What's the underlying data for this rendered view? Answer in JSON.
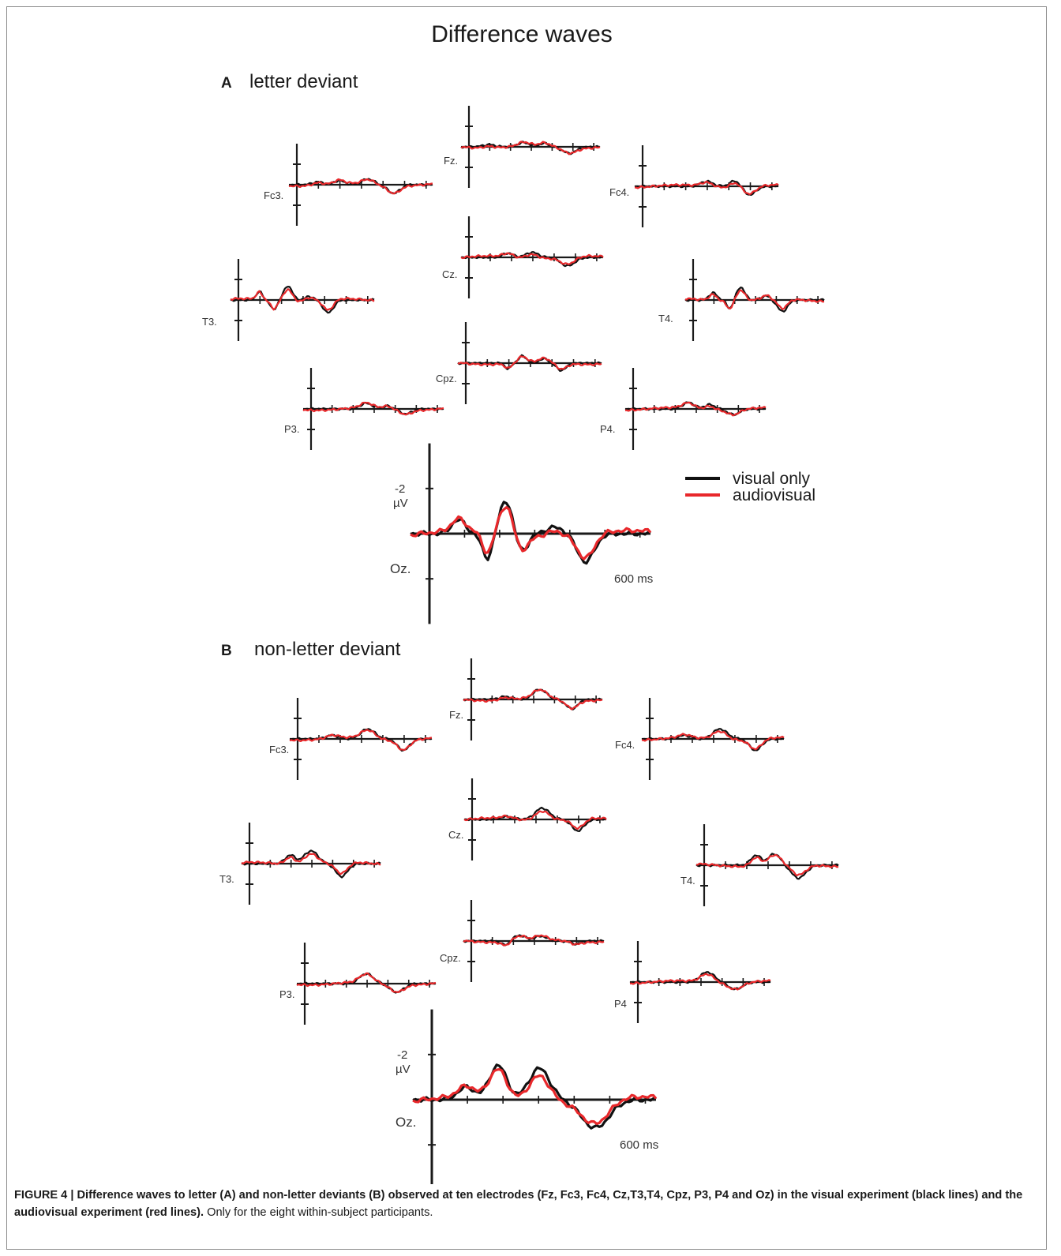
{
  "figure": {
    "title": "Difference waves",
    "panel_a": {
      "letter": "A",
      "label": "letter deviant"
    },
    "panel_b": {
      "letter": "B",
      "label": "non-letter deviant"
    },
    "legend": [
      {
        "label": "visual only",
        "color": "#111111"
      },
      {
        "label": "audiovisual",
        "color": "#e8282b"
      }
    ],
    "scale": {
      "amplitude": "-2",
      "unit": "µV",
      "time": "600 ms"
    },
    "electrodes_a": [
      "Fz.",
      "Fc3.",
      "Fc4.",
      "Cz.",
      "T3.",
      "T4.",
      "Cpz.",
      "P3.",
      "P4.",
      "Oz."
    ],
    "electrodes_b": [
      "Fz.",
      "Fc3.",
      "Fc4.",
      "Cz.",
      "T3.",
      "T4.",
      "Cpz.",
      "P3.",
      "P4",
      "Oz."
    ]
  },
  "caption": {
    "bold": "FIGURE 4 | Difference waves to letter (A) and non-letter deviants (B) observed at ten electrodes (Fz, Fc3, Fc4, Cz,T3,T4, Cpz, P3, P4 and Oz) in the visual experiment (black lines) and the audiovisual experiment (red lines).",
    "normal": " Only for the eight within-subject participants."
  }
}
